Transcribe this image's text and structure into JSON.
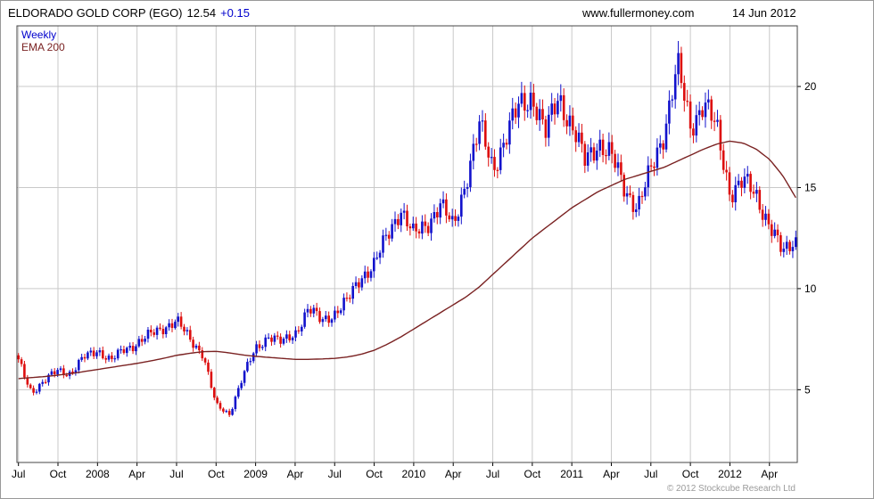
{
  "header": {
    "title": "ELDORADO GOLD CORP (EGO)",
    "last_price": "12.54",
    "change": "+0.15",
    "website": "www.fullermoney.com",
    "date": "14 Jun 2012"
  },
  "legend": {
    "timeframe": "Weekly",
    "indicator": "EMA 200"
  },
  "footer": {
    "copyright": "© 2012 Stockcube Research Ltd"
  },
  "colors": {
    "up_candle": "#1212cc",
    "down_candle": "#dd0d0d",
    "ema_line": "#7a2222",
    "grid": "#c9c9c9",
    "axis_text": "#000000",
    "plot_border": "#444444",
    "timeframe_label": "#0000cc",
    "change_text": "#0000cc",
    "copyright_text": "#9a9a9a"
  },
  "chart_data": {
    "type": "candlestick",
    "title": "ELDORADO GOLD CORP (EGO) weekly candlesticks with 200-period EMA",
    "timeframe": "Weekly",
    "indicator": "EMA 200",
    "x_range": [
      "Jul 2007",
      "Jun 2012"
    ],
    "y_axis": {
      "ticks": [
        5,
        10,
        15,
        20
      ],
      "min": 1.4,
      "max": 23.0
    },
    "x_ticks": {
      "labels": [
        "Jul",
        "Oct",
        "2008",
        "Apr",
        "Jul",
        "Oct",
        "2009",
        "Apr",
        "Jul",
        "Oct",
        "2010",
        "Apr",
        "Jul",
        "Oct",
        "2011",
        "Apr",
        "Jul",
        "Oct",
        "2012",
        "Apr"
      ],
      "month_offsets": [
        0,
        3,
        6,
        9,
        12,
        15,
        18,
        21,
        24,
        27,
        30,
        33,
        36,
        39,
        42,
        45,
        48,
        51,
        54,
        57
      ]
    },
    "start_month": "2007-07",
    "weeks_total": 259,
    "last_close": 12.54,
    "monthly_closes": [
      6.4,
      4.9,
      5.4,
      6.0,
      5.8,
      6.6,
      7.0,
      6.4,
      7.0,
      7.3,
      7.7,
      8.1,
      8.4,
      7.5,
      6.8,
      4.2,
      3.8,
      5.6,
      7.0,
      7.7,
      7.3,
      7.8,
      9.0,
      8.4,
      8.8,
      9.4,
      10.6,
      11.2,
      12.6,
      14.0,
      12.6,
      13.2,
      14.2,
      13.0,
      15.5,
      18.0,
      16.0,
      17.5,
      19.0,
      19.6,
      17.6,
      19.6,
      18.0,
      16.3,
      17.3,
      16.5,
      15.0,
      14.0,
      15.8,
      17.8,
      21.0,
      18.0,
      19.3,
      17.8,
      14.8,
      15.3,
      14.6,
      13.2,
      11.7,
      12.54
    ],
    "ema_monthly": [
      5.55,
      5.6,
      5.65,
      5.72,
      5.8,
      5.9,
      6.0,
      6.1,
      6.2,
      6.3,
      6.42,
      6.55,
      6.7,
      6.8,
      6.88,
      6.9,
      6.82,
      6.72,
      6.65,
      6.6,
      6.55,
      6.5,
      6.5,
      6.52,
      6.55,
      6.62,
      6.75,
      6.95,
      7.25,
      7.6,
      8.0,
      8.4,
      8.8,
      9.2,
      9.6,
      10.1,
      10.7,
      11.3,
      11.9,
      12.5,
      13.0,
      13.5,
      14.0,
      14.4,
      14.8,
      15.1,
      15.4,
      15.6,
      15.8,
      16.0,
      16.3,
      16.6,
      16.9,
      17.15,
      17.3,
      17.2,
      16.9,
      16.4,
      15.6,
      14.5
    ],
    "extremes": {
      "high": 22.2,
      "high_when": "Sep 2011",
      "low": 3.5,
      "low_when": "Oct 2008"
    }
  }
}
